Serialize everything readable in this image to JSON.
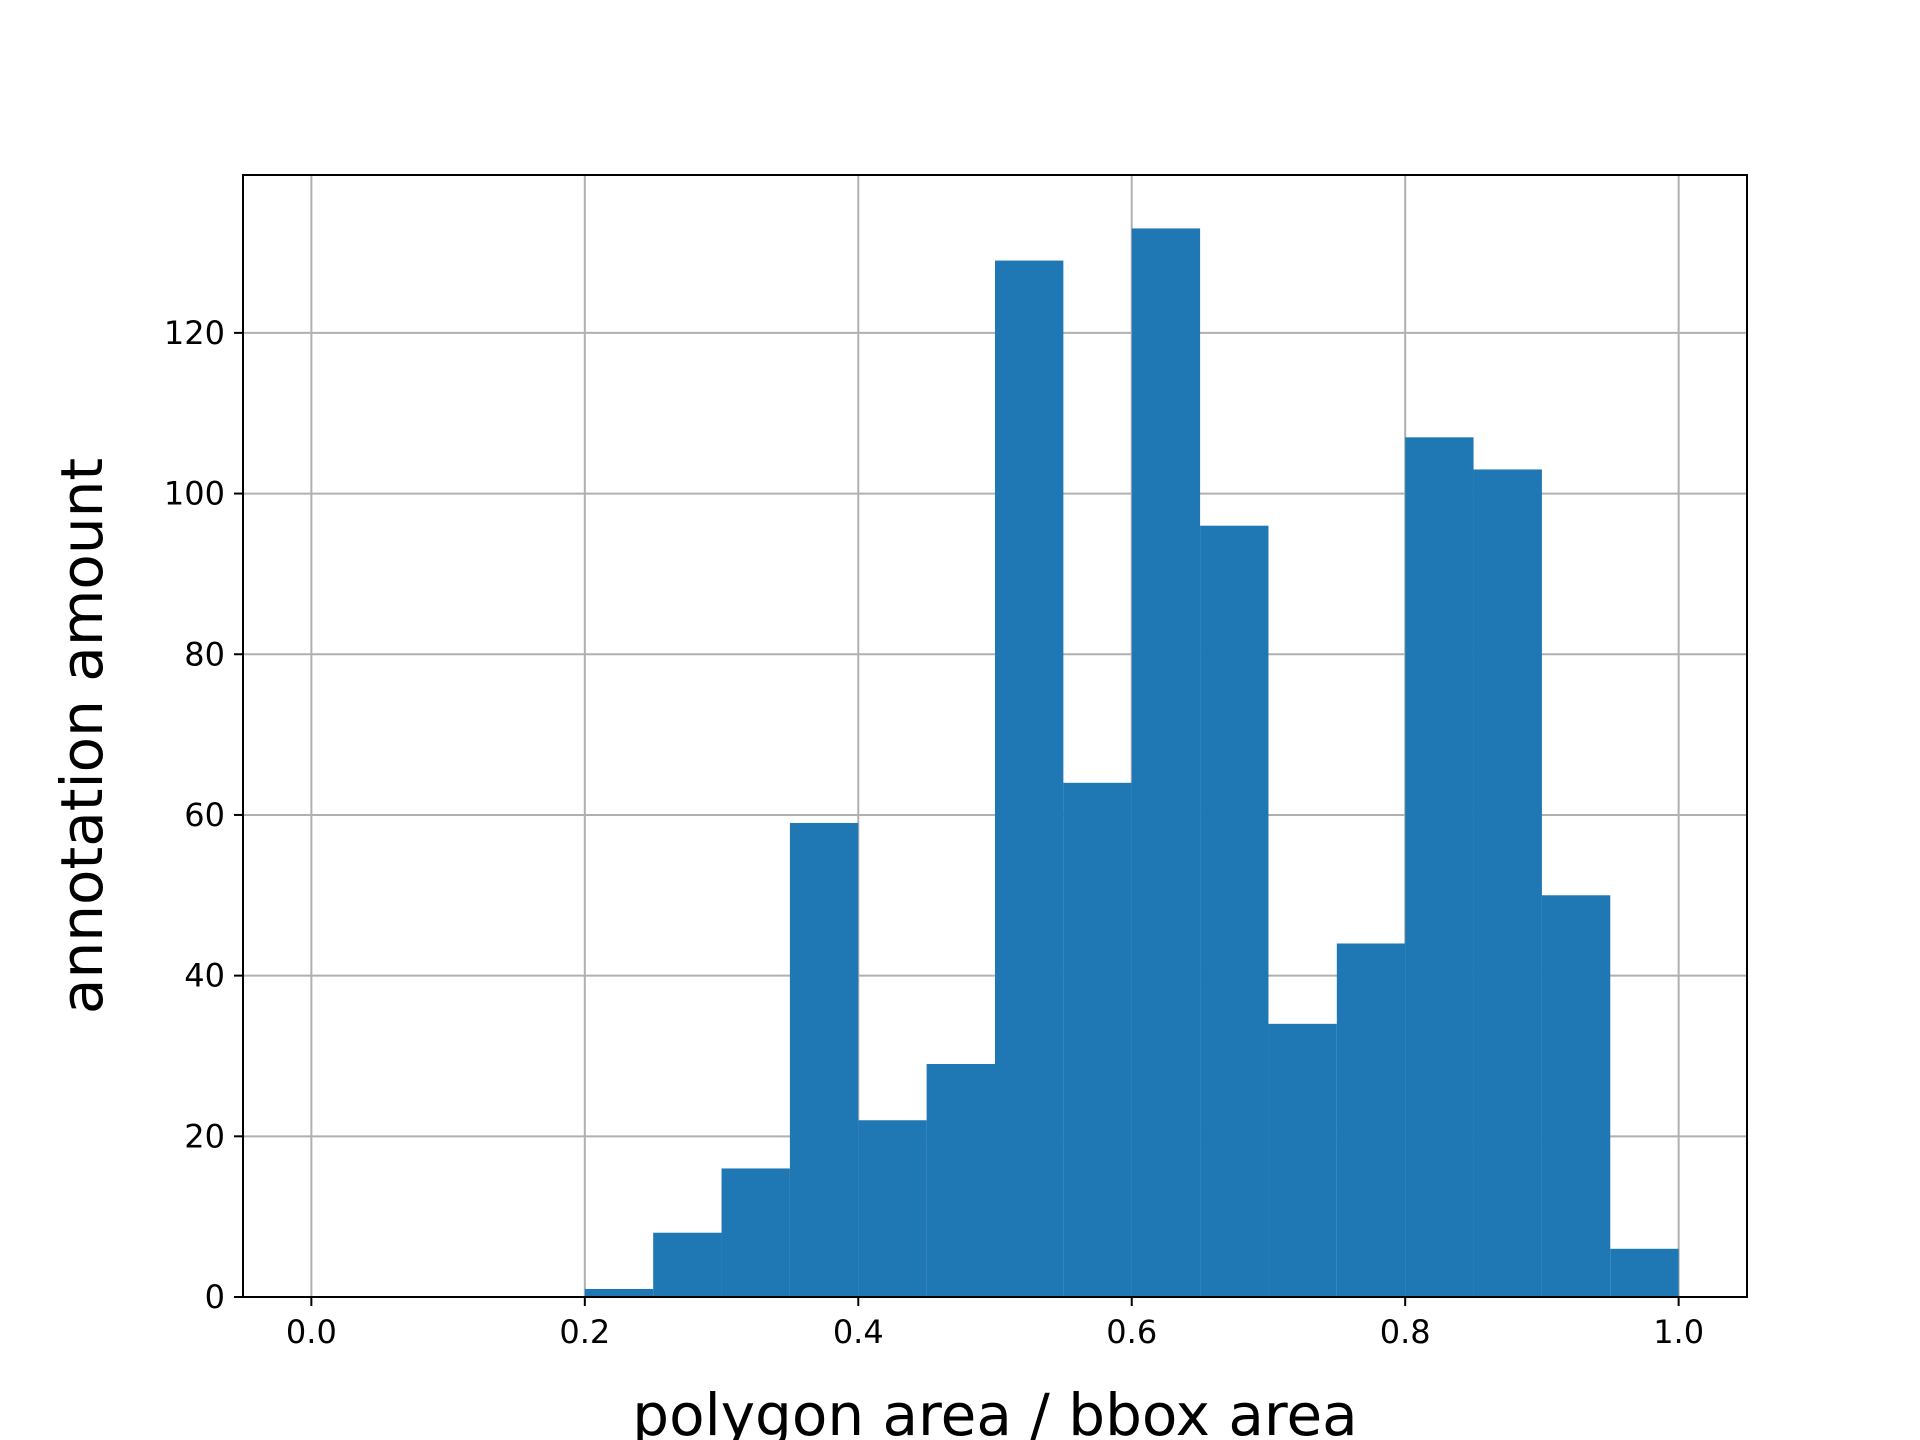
{
  "chart_data": {
    "type": "bar",
    "title": "",
    "xlabel": "polygon area / bbox area",
    "ylabel": "annotation amount",
    "bin_width": 0.05,
    "bin_starts": [
      0.0,
      0.05,
      0.1,
      0.15,
      0.2,
      0.25,
      0.3,
      0.35,
      0.4,
      0.45,
      0.5,
      0.55,
      0.6,
      0.65,
      0.7,
      0.75,
      0.8,
      0.85,
      0.9,
      0.95
    ],
    "values": [
      0,
      0,
      0,
      0,
      1,
      8,
      16,
      59,
      22,
      29,
      129,
      64,
      133,
      96,
      34,
      44,
      107,
      103,
      50,
      6
    ],
    "xlim": [
      -0.05,
      1.05
    ],
    "ylim": [
      0,
      139.65
    ],
    "xticks": [
      0.0,
      0.2,
      0.4,
      0.6,
      0.8,
      1.0
    ],
    "xtick_labels": [
      "0.0",
      "0.2",
      "0.4",
      "0.6",
      "0.8",
      "1.0"
    ],
    "yticks": [
      0,
      20,
      40,
      60,
      80,
      100,
      120
    ],
    "ytick_labels": [
      "0",
      "20",
      "40",
      "60",
      "80",
      "100",
      "120"
    ],
    "grid": true,
    "colors": {
      "bar": "#1f77b4",
      "grid": "#b0b0b0",
      "axis": "#000000"
    }
  }
}
